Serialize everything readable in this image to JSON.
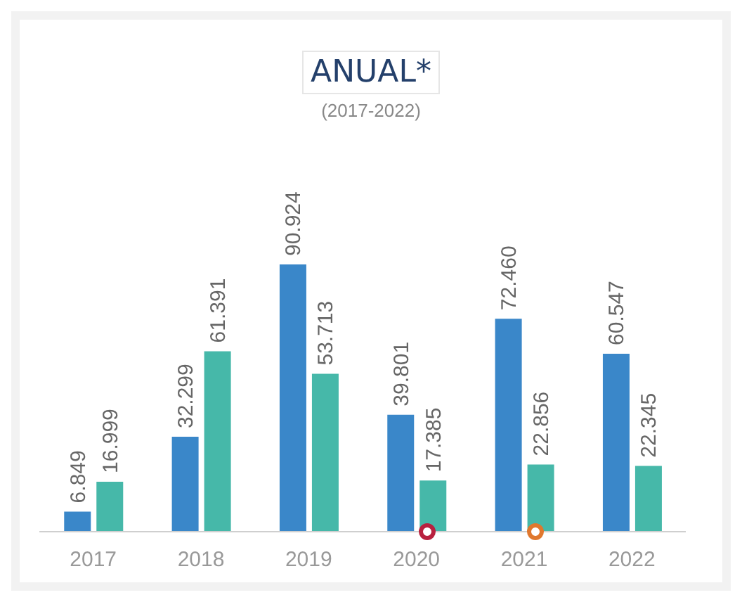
{
  "chart_data": {
    "type": "bar",
    "title": "ANUAL*",
    "subtitle": "(2017-2022)",
    "categories": [
      "2017",
      "2018",
      "2019",
      "2020",
      "2021",
      "2022"
    ],
    "series": [
      {
        "color": "#3a87c9",
        "values": [
          6.849,
          32.299,
          90.924,
          39.801,
          72.46,
          60.547
        ],
        "value_labels": [
          "6.849",
          "32.299",
          "90.924",
          "39.801",
          "72.460",
          "60.547"
        ]
      },
      {
        "color": "#46b8a9",
        "values": [
          16.999,
          61.391,
          53.713,
          17.385,
          22.856,
          22.345
        ],
        "value_labels": [
          "16.999",
          "61.391",
          "53.713",
          "17.385",
          "22.856",
          "22.345"
        ]
      }
    ],
    "grid": false,
    "legend": false
  }
}
